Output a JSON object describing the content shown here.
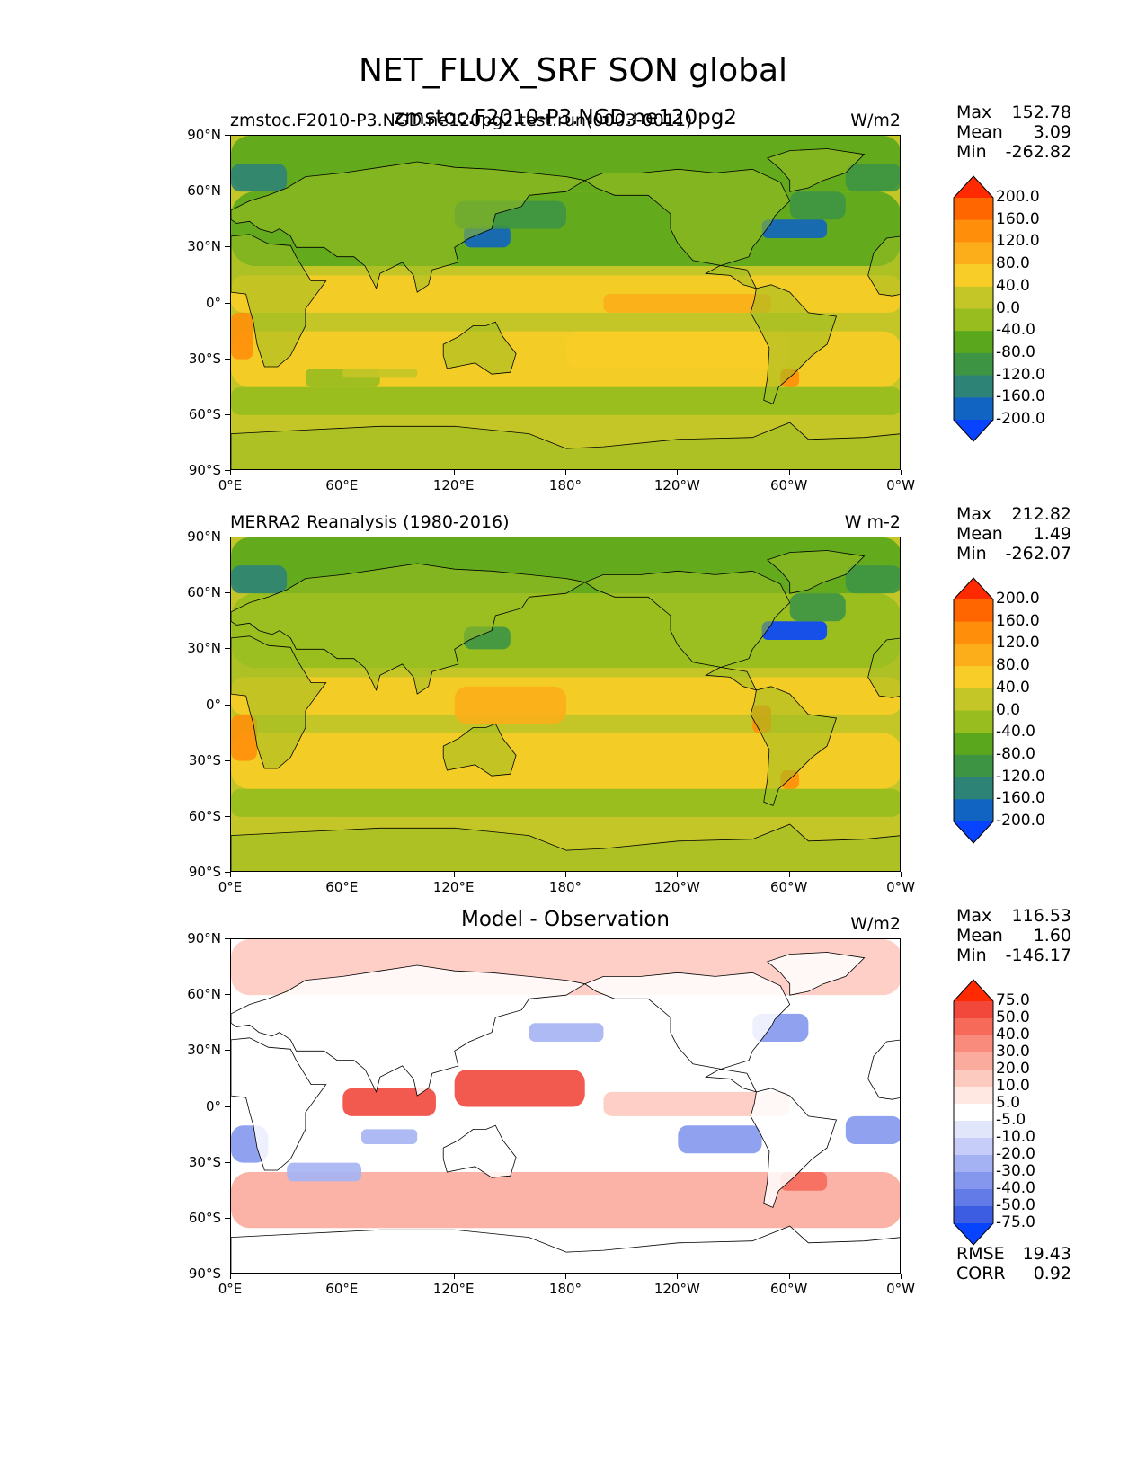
{
  "suptitle": "NET_FLUX_SRF SON global",
  "ytick_labels": [
    "90°N",
    "60°N",
    "30°N",
    "0°",
    "30°S",
    "60°S",
    "90°S"
  ],
  "xtick_labels": [
    "0°E",
    "60°E",
    "120°E",
    "180°",
    "120°W",
    "60°W",
    "0°W"
  ],
  "panels": [
    {
      "left_title": "zmstoc.F2010-P3.NGD.ne120pg2.test.run(0003-0011)",
      "center_title": "zmstoc.F2010-P3.NGD.ne120pg2",
      "units": "W/m2",
      "stats": [
        {
          "label": "Max",
          "value": "152.78"
        },
        {
          "label": "Mean",
          "value": "3.09"
        },
        {
          "label": "Min",
          "value": "-262.82"
        }
      ],
      "colorbar": {
        "labels": [
          "200.0",
          "160.0",
          "120.0",
          "80.0",
          "40.0",
          "0.0",
          "-40.0",
          "-80.0",
          "-120.0",
          "-160.0",
          "-200.0"
        ],
        "colors": [
          "#ff2a00",
          "#ff6600",
          "#ff8f0a",
          "#fbae1a",
          "#f8cd27",
          "#c4c627",
          "#97bd1f",
          "#5aa61d",
          "#3d9544",
          "#2d8375",
          "#1164c1",
          "#0844ff"
        ]
      }
    },
    {
      "left_title": "MERRA2 Reanalysis (1980-2016)",
      "center_title": "",
      "units": "W m-2",
      "stats": [
        {
          "label": "Max",
          "value": "212.82"
        },
        {
          "label": "Mean",
          "value": "1.49"
        },
        {
          "label": "Min",
          "value": "-262.07"
        }
      ],
      "colorbar": {
        "labels": [
          "200.0",
          "160.0",
          "120.0",
          "80.0",
          "40.0",
          "0.0",
          "-40.0",
          "-80.0",
          "-120.0",
          "-160.0",
          "-200.0"
        ],
        "colors": [
          "#ff2a00",
          "#ff6600",
          "#ff8f0a",
          "#fbae1a",
          "#f8cd27",
          "#c4c627",
          "#97bd1f",
          "#5aa61d",
          "#3d9544",
          "#2d8375",
          "#1164c1",
          "#0844ff"
        ]
      }
    },
    {
      "left_title": "",
      "center_title": "Model - Observation",
      "units": "W/m2",
      "stats": [
        {
          "label": "Max",
          "value": "116.53"
        },
        {
          "label": "Mean",
          "value": "1.60"
        },
        {
          "label": "Min",
          "value": "-146.17"
        }
      ],
      "extra_stats": [
        {
          "label": "RMSE",
          "value": "19.43"
        },
        {
          "label": "CORR",
          "value": "0.92"
        }
      ],
      "colorbar": {
        "labels": [
          "75.0",
          "50.0",
          "40.0",
          "30.0",
          "20.0",
          "10.0",
          "5.0",
          "-5.0",
          "-10.0",
          "-20.0",
          "-30.0",
          "-40.0",
          "-50.0",
          "-75.0"
        ],
        "colors": [
          "#ff2a00",
          "#f2483c",
          "#f66a5a",
          "#f98b7c",
          "#fbab9e",
          "#fdcac0",
          "#ffe8e2",
          "#ffffff",
          "#e2e6fb",
          "#c5cdf8",
          "#a4b2f3",
          "#8497ed",
          "#627be7",
          "#3c5ce2",
          "#0844ff"
        ]
      }
    }
  ],
  "chart_data": [
    {
      "type": "heatmap",
      "title": "zmstoc.F2010-P3.NGD.ne120pg2",
      "variable": "NET_FLUX_SRF",
      "season": "SON",
      "units": "W/m2",
      "xlim": [
        0,
        360
      ],
      "ylim": [
        -90,
        90
      ],
      "levels": [
        -200,
        -160,
        -120,
        -80,
        -40,
        0,
        40,
        80,
        120,
        160,
        200
      ],
      "max": 152.78,
      "mean": 3.09,
      "min": -262.82
    },
    {
      "type": "heatmap",
      "title": "MERRA2 Reanalysis (1980-2016)",
      "variable": "NET_FLUX_SRF",
      "season": "SON",
      "units": "W m-2",
      "xlim": [
        0,
        360
      ],
      "ylim": [
        -90,
        90
      ],
      "levels": [
        -200,
        -160,
        -120,
        -80,
        -40,
        0,
        40,
        80,
        120,
        160,
        200
      ],
      "max": 212.82,
      "mean": 1.49,
      "min": -262.07
    },
    {
      "type": "heatmap",
      "title": "Model - Observation",
      "units": "W/m2",
      "xlim": [
        0,
        360
      ],
      "ylim": [
        -90,
        90
      ],
      "levels": [
        -75,
        -50,
        -40,
        -30,
        -20,
        -10,
        -5,
        5,
        10,
        20,
        30,
        40,
        50,
        75
      ],
      "max": 116.53,
      "mean": 1.6,
      "min": -146.17,
      "rmse": 19.43,
      "corr": 0.92
    }
  ]
}
